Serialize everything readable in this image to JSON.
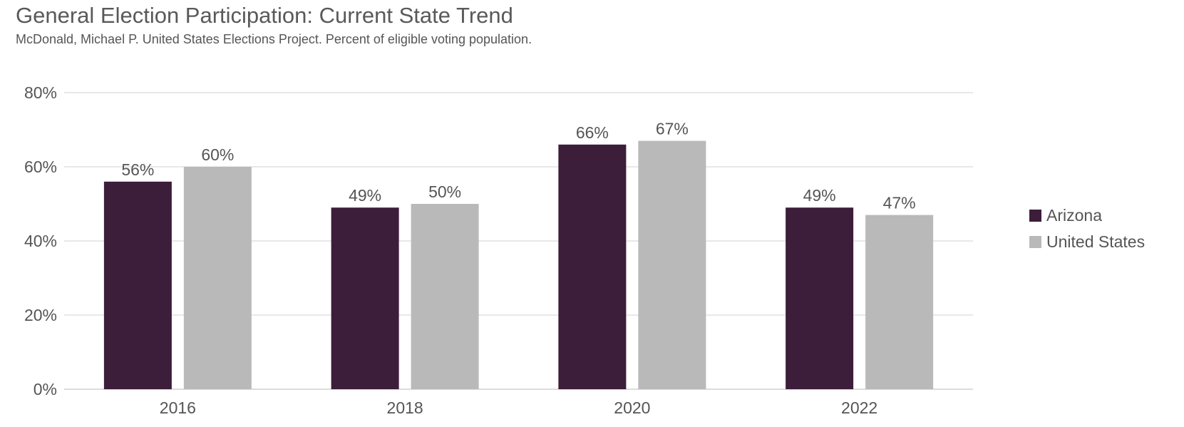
{
  "chart_data": {
    "type": "bar",
    "title": "General Election Participation: Current State Trend",
    "subtitle": "McDonald, Michael P. United States Elections Project. Percent of eligible voting population.",
    "xlabel": "",
    "ylabel": "",
    "categories": [
      "2016",
      "2018",
      "2020",
      "2022"
    ],
    "series": [
      {
        "name": "Arizona",
        "color": "#3c1d3a",
        "values": [
          56,
          49,
          66,
          49
        ],
        "labels": [
          "56%",
          "49%",
          "66%",
          "49%"
        ]
      },
      {
        "name": "United States",
        "color": "#b9b9b9",
        "values": [
          60,
          50,
          67,
          47
        ],
        "labels": [
          "60%",
          "50%",
          "67%",
          "47%"
        ]
      }
    ],
    "ylim": [
      0,
      80
    ],
    "yticks": [
      0,
      20,
      40,
      60,
      80
    ],
    "ytick_labels": [
      "0%",
      "20%",
      "40%",
      "60%",
      "80%"
    ],
    "grid": true,
    "legend_position": "right"
  }
}
